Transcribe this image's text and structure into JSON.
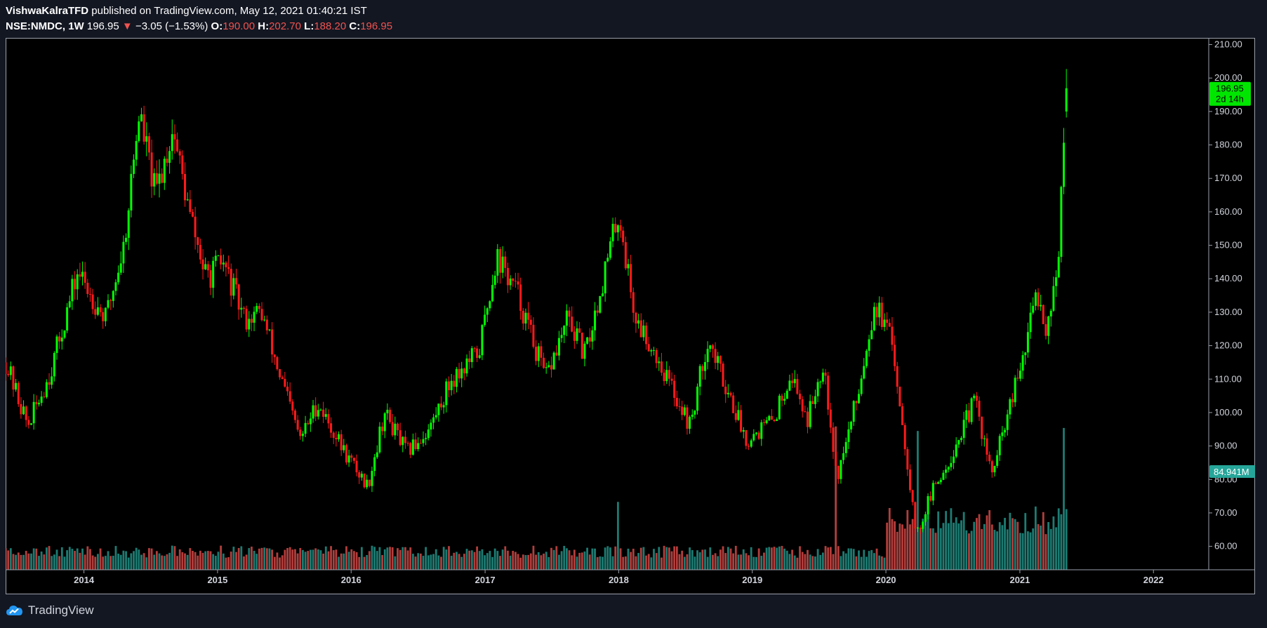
{
  "header": {
    "publisher": "VishwaKalraTFD",
    "published_text": "published on TradingView.com, May 12, 2021 01:40:21 IST",
    "symbol": "NSE:NMDC",
    "interval": "1W",
    "last": "196.95",
    "change_arrow": "▼",
    "change": "−3.05 (−1.53%)",
    "o_label": "O:",
    "o_value": "190.00",
    "h_label": "H:",
    "h_value": "202.70",
    "l_label": "L:",
    "l_value": "188.20",
    "c_label": "C:",
    "c_value": "196.95"
  },
  "footer": {
    "brand": "TradingView"
  },
  "colors": {
    "up": "#00ff00",
    "down": "#ff1a1a",
    "vol_up": "#26a69a",
    "vol_down": "#ef5350",
    "price_label": "#00e600",
    "vol_label": "#26a69a"
  },
  "chart_data": {
    "type": "candlestick",
    "interval": "1W",
    "x_range": [
      "2013-06",
      "2022-06"
    ],
    "x_ticks": [
      {
        "label": "2014",
        "date": "2014-01-01"
      },
      {
        "label": "2015",
        "date": "2015-01-01"
      },
      {
        "label": "2016",
        "date": "2016-01-01"
      },
      {
        "label": "2017",
        "date": "2017-01-01"
      },
      {
        "label": "2018",
        "date": "2018-01-01"
      },
      {
        "label": "2019",
        "date": "2019-01-01"
      },
      {
        "label": "2020",
        "date": "2020-01-01"
      },
      {
        "label": "2021",
        "date": "2021-01-01"
      },
      {
        "label": "2022",
        "date": "2022-01-01"
      }
    ],
    "y_range": [
      53,
      212
    ],
    "y_ticks": [
      "60.00",
      "70.00",
      "80.00",
      "90.00",
      "100.00",
      "110.00",
      "120.00",
      "130.00",
      "140.00",
      "150.00",
      "160.00",
      "170.00",
      "180.00",
      "190.00",
      "200.00",
      "210.00"
    ],
    "price_path": [
      {
        "date": "2013-06-01",
        "close": 115
      },
      {
        "date": "2013-08-01",
        "close": 96
      },
      {
        "date": "2013-10-01",
        "close": 112
      },
      {
        "date": "2013-12-15",
        "close": 142
      },
      {
        "date": "2014-03-01",
        "close": 128
      },
      {
        "date": "2014-04-20",
        "close": 150
      },
      {
        "date": "2014-06-01",
        "close": 190
      },
      {
        "date": "2014-07-15",
        "close": 165
      },
      {
        "date": "2014-09-01",
        "close": 185
      },
      {
        "date": "2014-10-15",
        "close": 160
      },
      {
        "date": "2014-12-01",
        "close": 140
      },
      {
        "date": "2015-01-15",
        "close": 145
      },
      {
        "date": "2015-03-15",
        "close": 128
      },
      {
        "date": "2015-05-01",
        "close": 130
      },
      {
        "date": "2015-06-15",
        "close": 113
      },
      {
        "date": "2015-08-15",
        "close": 92
      },
      {
        "date": "2015-10-01",
        "close": 103
      },
      {
        "date": "2015-12-15",
        "close": 88
      },
      {
        "date": "2016-02-15",
        "close": 78
      },
      {
        "date": "2016-04-01",
        "close": 100
      },
      {
        "date": "2016-06-01",
        "close": 88
      },
      {
        "date": "2016-08-01",
        "close": 95
      },
      {
        "date": "2016-10-01",
        "close": 110
      },
      {
        "date": "2016-12-15",
        "close": 118
      },
      {
        "date": "2017-02-01",
        "close": 147
      },
      {
        "date": "2017-04-01",
        "close": 135
      },
      {
        "date": "2017-06-15",
        "close": 110
      },
      {
        "date": "2017-08-15",
        "close": 128
      },
      {
        "date": "2017-10-01",
        "close": 117
      },
      {
        "date": "2017-11-15",
        "close": 138
      },
      {
        "date": "2018-01-01",
        "close": 160
      },
      {
        "date": "2018-02-15",
        "close": 128
      },
      {
        "date": "2018-04-01",
        "close": 120
      },
      {
        "date": "2018-05-15",
        "close": 110
      },
      {
        "date": "2018-07-15",
        "close": 96
      },
      {
        "date": "2018-09-01",
        "close": 122
      },
      {
        "date": "2018-11-01",
        "close": 105
      },
      {
        "date": "2018-12-15",
        "close": 92
      },
      {
        "date": "2019-03-01",
        "close": 98
      },
      {
        "date": "2019-04-15",
        "close": 112
      },
      {
        "date": "2019-06-01",
        "close": 98
      },
      {
        "date": "2019-07-15",
        "close": 116
      },
      {
        "date": "2019-08-20",
        "close": 80
      },
      {
        "date": "2019-10-15",
        "close": 105
      },
      {
        "date": "2019-12-01",
        "close": 133
      },
      {
        "date": "2020-01-20",
        "close": 120
      },
      {
        "date": "2020-03-25",
        "close": 63
      },
      {
        "date": "2020-05-01",
        "close": 75
      },
      {
        "date": "2020-07-01",
        "close": 88
      },
      {
        "date": "2020-09-01",
        "close": 104
      },
      {
        "date": "2020-10-15",
        "close": 81
      },
      {
        "date": "2020-12-01",
        "close": 100
      },
      {
        "date": "2021-01-15",
        "close": 118
      },
      {
        "date": "2021-02-15",
        "close": 137
      },
      {
        "date": "2021-03-15",
        "close": 125
      },
      {
        "date": "2021-04-15",
        "close": 145
      },
      {
        "date": "2021-05-10",
        "close": 196.95
      }
    ],
    "volume_spikes": [
      {
        "date": "2019-08-20",
        "rel": 0.95
      },
      {
        "date": "2020-03-25",
        "rel": 0.92
      },
      {
        "date": "2018-01-01",
        "rel": 0.45
      },
      {
        "date": "2021-05-03",
        "rel": 0.94
      }
    ],
    "last_price": {
      "value": 196.95,
      "label": "196.95",
      "countdown": "2d 14h"
    },
    "last_volume": {
      "label": "84.941M"
    }
  }
}
